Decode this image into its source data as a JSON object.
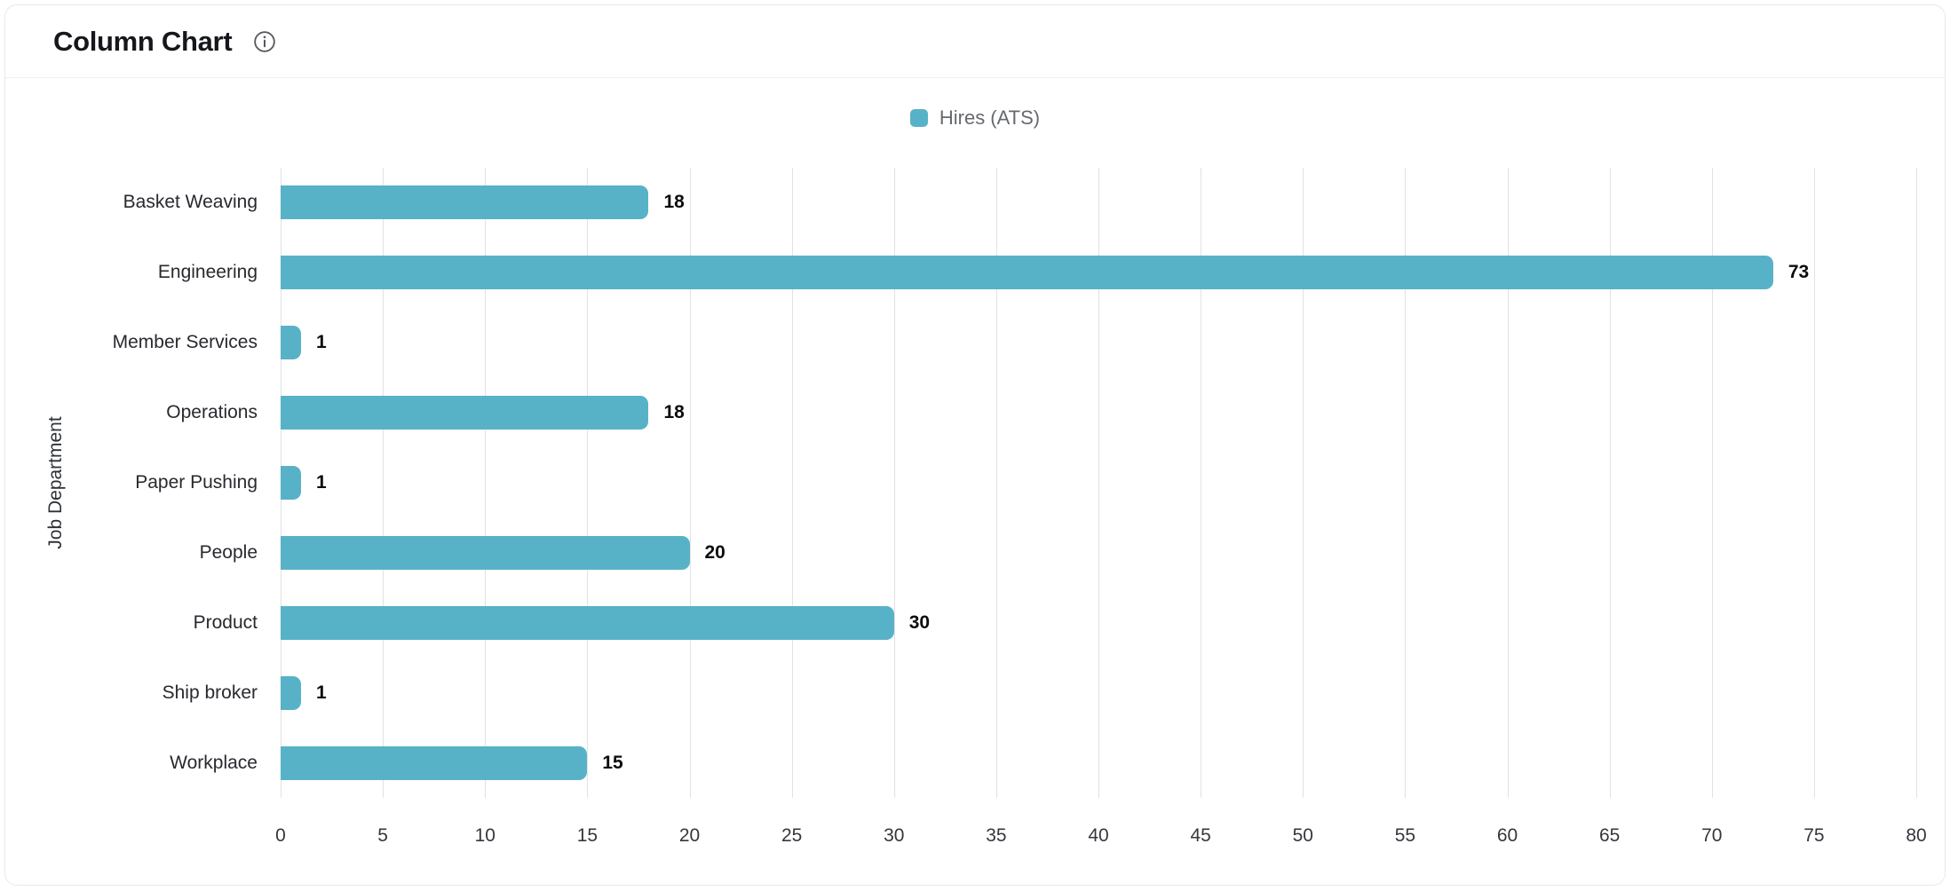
{
  "header": {
    "title": "Column Chart"
  },
  "legend": {
    "label": "Hires (ATS)"
  },
  "colors": {
    "accent": "#58B2C7",
    "grid": "#e1e2e4",
    "title_text": "#15171c",
    "legend_text": "#66696e",
    "axis_text": "#34373c",
    "value_text": "#0b0c0e"
  },
  "chart_data": {
    "type": "bar",
    "orientation": "horizontal",
    "title": "Column Chart",
    "categories": [
      "Basket Weaving",
      "Engineering",
      "Member Services",
      "Operations",
      "Paper Pushing",
      "People",
      "Product",
      "Ship broker",
      "Workplace"
    ],
    "series": [
      {
        "name": "Hires (ATS)",
        "values": [
          18,
          73,
          1,
          18,
          1,
          20,
          30,
          1,
          15
        ]
      }
    ],
    "value_labels": [
      18,
      73,
      1,
      18,
      1,
      20,
      30,
      1,
      15
    ],
    "xlabel": "",
    "ylabel": "Job Department",
    "xlim": [
      0,
      80
    ],
    "x_ticks": [
      0,
      5,
      10,
      15,
      20,
      25,
      30,
      35,
      40,
      45,
      50,
      55,
      60,
      65,
      70,
      75,
      80
    ],
    "grid": true,
    "legend_position": "top-center",
    "bar_color": "#58B2C7"
  }
}
